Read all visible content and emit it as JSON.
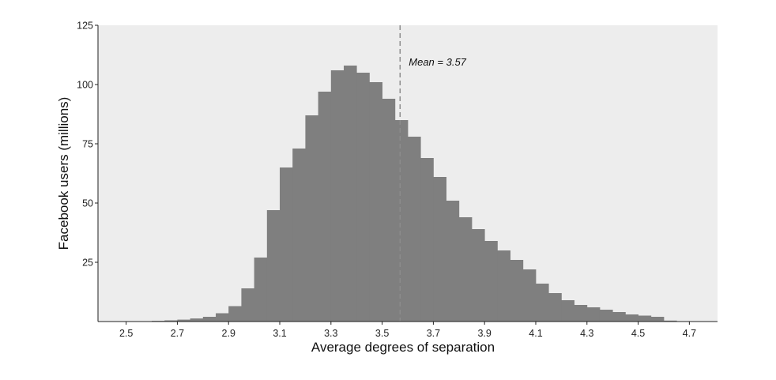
{
  "chart_data": {
    "type": "bar",
    "title": "",
    "xlabel": "Average degrees of separation",
    "ylabel": "Facebook users (millions)",
    "xlim": [
      2.39,
      4.81
    ],
    "ylim": [
      0,
      125
    ],
    "bin_width": 0.05,
    "x_ticks": [
      2.5,
      2.7,
      2.9,
      3.1,
      3.3,
      3.5,
      3.7,
      3.9,
      4.1,
      4.3,
      4.5,
      4.7
    ],
    "x_tick_labels": [
      "2.5",
      "2.7",
      "2.9",
      "3.1",
      "3.3",
      "3.5",
      "3.7",
      "3.9",
      "4.1",
      "4.3",
      "4.5",
      "4.7"
    ],
    "y_ticks": [
      25,
      50,
      75,
      100,
      125
    ],
    "y_tick_labels": [
      "25",
      "50",
      "75",
      "100",
      "125"
    ],
    "bins": [
      2.625,
      2.675,
      2.725,
      2.775,
      2.825,
      2.875,
      2.925,
      2.975,
      3.025,
      3.075,
      3.125,
      3.175,
      3.225,
      3.275,
      3.325,
      3.375,
      3.425,
      3.475,
      3.525,
      3.575,
      3.625,
      3.675,
      3.725,
      3.775,
      3.825,
      3.875,
      3.925,
      3.975,
      4.025,
      4.075,
      4.125,
      4.175,
      4.225,
      4.275,
      4.325,
      4.375,
      4.425,
      4.475,
      4.525,
      4.575,
      4.625
    ],
    "values": [
      0.3,
      0.5,
      0.8,
      1.3,
      2.0,
      3.5,
      6.5,
      14,
      27,
      47,
      65,
      73,
      87,
      97,
      106,
      108,
      105,
      101,
      94,
      85,
      78,
      69,
      61,
      51,
      44,
      39,
      34,
      30,
      26,
      22,
      16,
      12,
      9,
      7,
      6,
      5,
      4,
      3,
      2.5,
      2,
      0.4
    ],
    "mean": {
      "value": 3.57,
      "label": "Mean = 3.57"
    },
    "grid": false,
    "legend": "none",
    "colors": {
      "panel": "#ededed",
      "bar": "#7f7f7f",
      "mean_line": "#8c8c8c",
      "axis": "#222222"
    }
  }
}
